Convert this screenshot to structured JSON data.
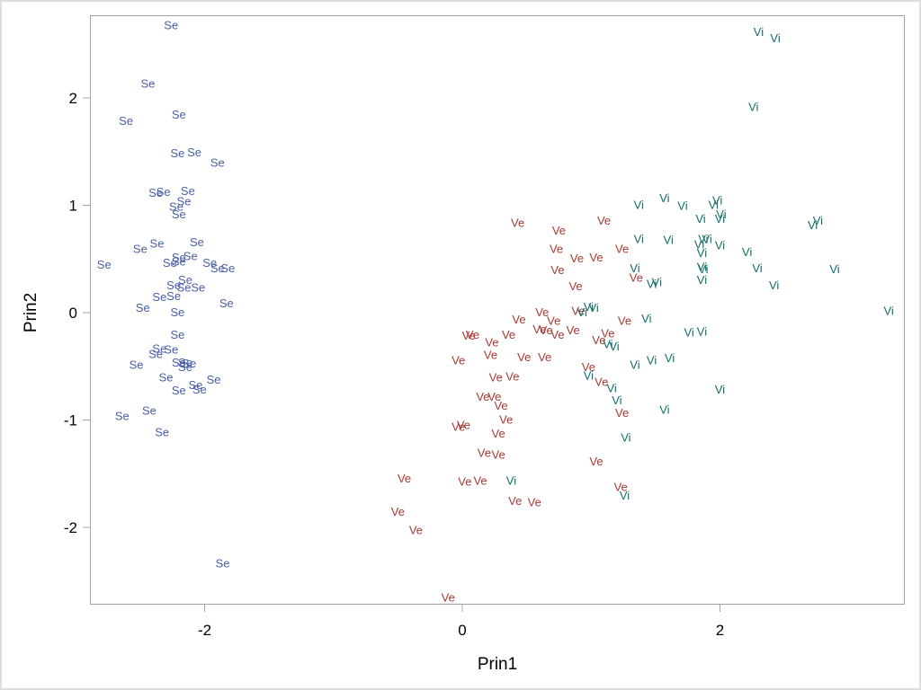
{
  "chart_data": {
    "type": "scatter",
    "title": "",
    "xlabel": "Prin1",
    "ylabel": "Prin2",
    "xlim": [
      -2.88,
      3.45
    ],
    "ylim": [
      -2.72,
      2.77
    ],
    "xticks": [
      -2,
      0,
      2
    ],
    "yticks": [
      -2,
      -1,
      0,
      1,
      2
    ],
    "grid": false,
    "legend": null,
    "marker_type": "text-labels",
    "series": [
      {
        "name": "Se",
        "color": "#4a5ea8",
        "points": [
          [
            -2.26,
            2.68
          ],
          [
            -2.44,
            2.14
          ],
          [
            -2.61,
            1.79
          ],
          [
            -2.2,
            1.85
          ],
          [
            -2.21,
            1.49
          ],
          [
            -2.08,
            1.5
          ],
          [
            -1.9,
            1.4
          ],
          [
            -2.38,
            1.12
          ],
          [
            -2.32,
            1.13
          ],
          [
            -2.13,
            1.14
          ],
          [
            -2.16,
            1.04
          ],
          [
            -2.22,
            0.99
          ],
          [
            -2.2,
            0.92
          ],
          [
            -2.5,
            0.6
          ],
          [
            -2.37,
            0.65
          ],
          [
            -2.06,
            0.66
          ],
          [
            -2.78,
            0.45
          ],
          [
            -2.27,
            0.47
          ],
          [
            -2.2,
            0.52
          ],
          [
            -2.2,
            0.48
          ],
          [
            -2.11,
            0.53
          ],
          [
            -1.96,
            0.47
          ],
          [
            -1.9,
            0.42
          ],
          [
            -1.82,
            0.42
          ],
          [
            -2.15,
            0.31
          ],
          [
            -2.24,
            0.26
          ],
          [
            -2.16,
            0.24
          ],
          [
            -2.05,
            0.24
          ],
          [
            -2.35,
            0.15
          ],
          [
            -2.24,
            0.16
          ],
          [
            -1.83,
            0.09
          ],
          [
            -2.48,
            0.05
          ],
          [
            -2.21,
            0.01
          ],
          [
            -2.21,
            -0.2
          ],
          [
            -2.35,
            -0.33
          ],
          [
            -2.38,
            -0.38
          ],
          [
            -2.26,
            -0.34
          ],
          [
            -2.53,
            -0.48
          ],
          [
            -2.2,
            -0.46
          ],
          [
            -2.15,
            -0.46
          ],
          [
            -2.12,
            -0.47
          ],
          [
            -2.15,
            -0.5
          ],
          [
            -2.3,
            -0.6
          ],
          [
            -2.07,
            -0.67
          ],
          [
            -2.04,
            -0.71
          ],
          [
            -1.93,
            -0.62
          ],
          [
            -2.2,
            -0.72
          ],
          [
            -2.64,
            -0.96
          ],
          [
            -2.43,
            -0.91
          ],
          [
            -2.33,
            -1.11
          ],
          [
            -1.86,
            -2.33
          ]
        ]
      },
      {
        "name": "Ve",
        "color": "#a83a32",
        "points": [
          [
            0.43,
            0.84
          ],
          [
            0.75,
            0.77
          ],
          [
            1.1,
            0.86
          ],
          [
            0.73,
            0.6
          ],
          [
            0.89,
            0.51
          ],
          [
            1.04,
            0.52
          ],
          [
            1.24,
            0.6
          ],
          [
            0.74,
            0.4
          ],
          [
            0.88,
            0.25
          ],
          [
            1.35,
            0.33
          ],
          [
            0.62,
            0.01
          ],
          [
            0.9,
            0.02
          ],
          [
            0.71,
            -0.07
          ],
          [
            0.44,
            -0.06
          ],
          [
            0.65,
            -0.16
          ],
          [
            0.6,
            -0.15
          ],
          [
            0.74,
            -0.2
          ],
          [
            0.86,
            -0.16
          ],
          [
            1.13,
            -0.19
          ],
          [
            1.26,
            -0.07
          ],
          [
            0.08,
            -0.2
          ],
          [
            0.05,
            -0.21
          ],
          [
            0.23,
            -0.27
          ],
          [
            0.36,
            -0.2
          ],
          [
            0.22,
            -0.39
          ],
          [
            0.48,
            -0.41
          ],
          [
            0.64,
            -0.41
          ],
          [
            -0.03,
            -0.44
          ],
          [
            1.06,
            -0.25
          ],
          [
            0.26,
            -0.6
          ],
          [
            0.39,
            -0.59
          ],
          [
            0.98,
            -0.5
          ],
          [
            1.08,
            -0.64
          ],
          [
            0.16,
            -0.78
          ],
          [
            0.25,
            -0.78
          ],
          [
            0.3,
            -0.86
          ],
          [
            0.34,
            -0.99
          ],
          [
            -0.03,
            -1.06
          ],
          [
            0.01,
            -1.04
          ],
          [
            0.28,
            -1.12
          ],
          [
            1.24,
            -0.93
          ],
          [
            0.17,
            -1.3
          ],
          [
            0.28,
            -1.32
          ],
          [
            1.04,
            -1.38
          ],
          [
            -0.45,
            -1.54
          ],
          [
            0.02,
            -1.57
          ],
          [
            0.14,
            -1.56
          ],
          [
            0.41,
            -1.75
          ],
          [
            0.56,
            -1.76
          ],
          [
            1.23,
            -1.62
          ],
          [
            -0.5,
            -1.85
          ],
          [
            -0.36,
            -2.02
          ],
          [
            -0.11,
            -2.65
          ]
        ]
      },
      {
        "name": "Vi",
        "color": "#0f6e6a",
        "points": [
          [
            2.3,
            2.62
          ],
          [
            2.43,
            2.56
          ],
          [
            2.26,
            1.92
          ],
          [
            1.37,
            1.01
          ],
          [
            1.57,
            1.07
          ],
          [
            1.71,
            1.0
          ],
          [
            1.98,
            1.05
          ],
          [
            1.95,
            1.01
          ],
          [
            2.01,
            0.92
          ],
          [
            2.0,
            0.88
          ],
          [
            1.85,
            0.88
          ],
          [
            2.72,
            0.82
          ],
          [
            2.76,
            0.86
          ],
          [
            1.37,
            0.69
          ],
          [
            1.6,
            0.68
          ],
          [
            1.87,
            0.69
          ],
          [
            1.9,
            0.69
          ],
          [
            1.84,
            0.64
          ],
          [
            2.0,
            0.63
          ],
          [
            2.21,
            0.57
          ],
          [
            1.86,
            0.56
          ],
          [
            1.34,
            0.42
          ],
          [
            1.86,
            0.43
          ],
          [
            1.87,
            0.41
          ],
          [
            2.29,
            0.42
          ],
          [
            2.89,
            0.41
          ],
          [
            1.51,
            0.29
          ],
          [
            1.47,
            0.27
          ],
          [
            1.86,
            0.31
          ],
          [
            2.42,
            0.26
          ],
          [
            0.93,
            0.01
          ],
          [
            0.98,
            0.06
          ],
          [
            1.02,
            0.05
          ],
          [
            1.43,
            -0.05
          ],
          [
            3.31,
            0.02
          ],
          [
            1.76,
            -0.18
          ],
          [
            1.86,
            -0.17
          ],
          [
            1.13,
            -0.29
          ],
          [
            1.18,
            -0.31
          ],
          [
            1.34,
            -0.48
          ],
          [
            1.47,
            -0.44
          ],
          [
            1.61,
            -0.42
          ],
          [
            0.98,
            -0.58
          ],
          [
            1.16,
            -0.7
          ],
          [
            1.2,
            -0.81
          ],
          [
            2.0,
            -0.71
          ],
          [
            1.57,
            -0.9
          ],
          [
            1.27,
            -1.16
          ],
          [
            0.38,
            -1.56
          ],
          [
            1.26,
            -1.7
          ]
        ]
      }
    ]
  },
  "axes": {
    "x_title": "Prin1",
    "y_title": "Prin2",
    "x_tick_labels": [
      "-2",
      "0",
      "2"
    ],
    "y_tick_labels": [
      "2",
      "1",
      "0",
      "-1",
      "-2"
    ]
  }
}
